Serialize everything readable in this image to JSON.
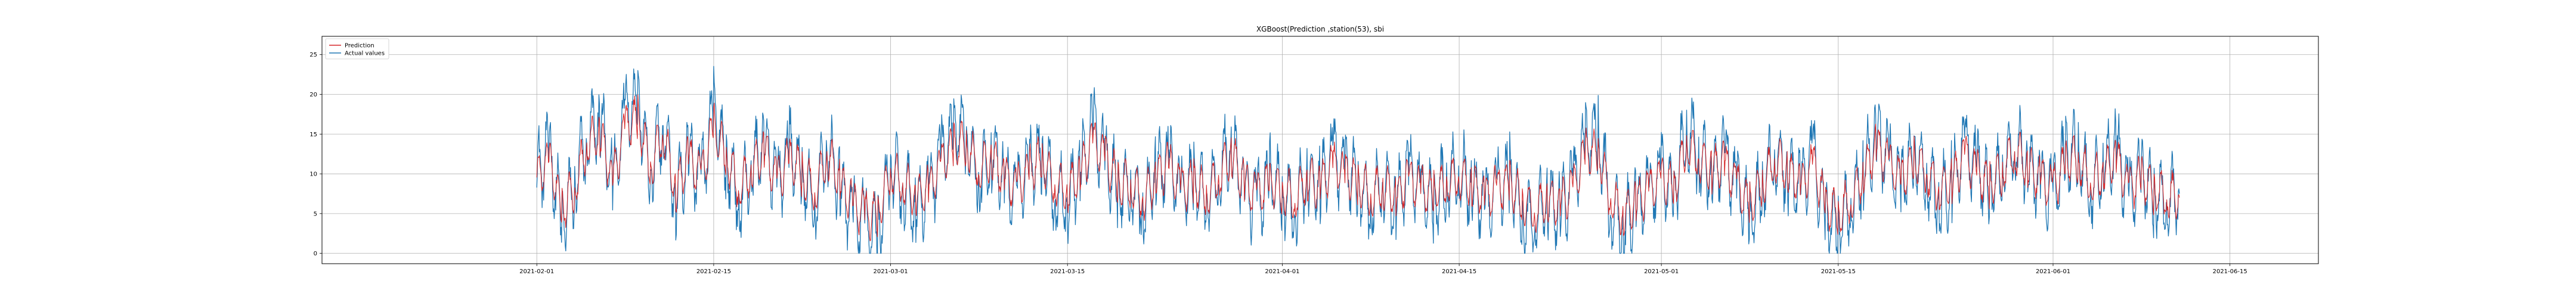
{
  "chart_data": {
    "type": "line",
    "title": "XGBoost(Prediction ,station(53), sbi",
    "xlabel": "",
    "ylabel": "",
    "x_range": [
      "2021-01-15",
      "2021-06-22"
    ],
    "x_ticks": [
      "2021-02-01",
      "2021-02-15",
      "2021-03-01",
      "2021-03-15",
      "2021-04-01",
      "2021-04-15",
      "2021-05-01",
      "2021-05-15",
      "2021-06-01",
      "2021-06-15"
    ],
    "ylim": [
      -1.3,
      27.3
    ],
    "y_ticks": [
      0,
      5,
      10,
      15,
      20,
      25
    ],
    "grid": true,
    "legend_position": "top-left",
    "series": [
      {
        "name": "Prediction",
        "color": "#d62728",
        "generated": false,
        "points": [
          [
            "2021-02-01",
            9.5
          ],
          [
            "2021-02-02",
            11.5
          ],
          [
            "2021-02-03",
            5.5
          ],
          [
            "2021-02-04",
            8.5
          ],
          [
            "2021-02-05",
            14.0
          ],
          [
            "2021-02-06",
            15.0
          ],
          [
            "2021-02-07",
            9.0
          ],
          [
            "2021-02-08",
            16.0
          ],
          [
            "2021-02-09",
            17.0
          ],
          [
            "2021-02-10",
            11.0
          ],
          [
            "2021-02-11",
            15.5
          ],
          [
            "2021-02-12",
            8.0
          ],
          [
            "2021-02-13",
            12.0
          ],
          [
            "2021-02-14",
            9.5
          ],
          [
            "2021-02-15",
            16.0
          ],
          [
            "2021-02-16",
            12.0
          ],
          [
            "2021-02-17",
            8.5
          ],
          [
            "2021-02-18",
            10.5
          ],
          [
            "2021-02-19",
            13.0
          ],
          [
            "2021-02-20",
            9.0
          ],
          [
            "2021-02-21",
            12.0
          ],
          [
            "2021-02-22",
            10.0
          ],
          [
            "2021-02-23",
            8.0
          ],
          [
            "2021-02-24",
            12.5
          ],
          [
            "2021-02-25",
            9.0
          ],
          [
            "2021-02-26",
            6.0
          ],
          [
            "2021-02-27",
            5.0
          ],
          [
            "2021-02-28",
            4.5
          ],
          [
            "2021-03-01",
            10.5
          ],
          [
            "2021-03-02",
            9.0
          ],
          [
            "2021-03-03",
            7.0
          ],
          [
            "2021-03-04",
            8.0
          ],
          [
            "2021-03-05",
            11.0
          ],
          [
            "2021-03-06",
            13.5
          ],
          [
            "2021-03-07",
            14.0
          ],
          [
            "2021-03-08",
            11.0
          ],
          [
            "2021-03-09",
            12.0
          ],
          [
            "2021-03-10",
            9.5
          ],
          [
            "2021-03-11",
            8.0
          ],
          [
            "2021-03-12",
            10.5
          ],
          [
            "2021-03-13",
            12.0
          ],
          [
            "2021-03-14",
            9.0
          ],
          [
            "2021-03-15",
            8.0
          ],
          [
            "2021-03-16",
            10.0
          ],
          [
            "2021-03-17",
            14.0
          ],
          [
            "2021-03-18",
            12.0
          ],
          [
            "2021-03-19",
            9.0
          ],
          [
            "2021-03-20",
            8.5
          ],
          [
            "2021-03-21",
            7.0
          ],
          [
            "2021-03-22",
            9.5
          ],
          [
            "2021-03-23",
            11.0
          ],
          [
            "2021-03-24",
            8.0
          ],
          [
            "2021-03-25",
            9.0
          ],
          [
            "2021-03-26",
            7.5
          ],
          [
            "2021-03-27",
            10.0
          ],
          [
            "2021-03-28",
            12.5
          ],
          [
            "2021-03-29",
            8.5
          ],
          [
            "2021-03-30",
            7.0
          ],
          [
            "2021-03-31",
            9.0
          ],
          [
            "2021-04-01",
            8.0
          ],
          [
            "2021-04-02",
            7.0
          ],
          [
            "2021-04-03",
            9.5
          ],
          [
            "2021-04-04",
            8.5
          ],
          [
            "2021-04-05",
            11.0
          ],
          [
            "2021-04-06",
            10.0
          ],
          [
            "2021-04-07",
            9.0
          ],
          [
            "2021-04-08",
            7.5
          ],
          [
            "2021-04-09",
            8.5
          ],
          [
            "2021-04-10",
            7.0
          ],
          [
            "2021-04-11",
            9.5
          ],
          [
            "2021-04-12",
            8.0
          ],
          [
            "2021-04-13",
            7.5
          ],
          [
            "2021-04-14",
            9.0
          ],
          [
            "2021-04-15",
            10.0
          ],
          [
            "2021-04-16",
            8.5
          ],
          [
            "2021-04-17",
            7.0
          ],
          [
            "2021-04-18",
            8.0
          ],
          [
            "2021-04-19",
            9.0
          ],
          [
            "2021-04-20",
            6.5
          ],
          [
            "2021-04-21",
            5.5
          ],
          [
            "2021-04-22",
            7.0
          ],
          [
            "2021-04-23",
            6.0
          ],
          [
            "2021-04-24",
            8.0
          ],
          [
            "2021-04-25",
            12.5
          ],
          [
            "2021-04-26",
            13.0
          ],
          [
            "2021-04-27",
            7.0
          ],
          [
            "2021-04-28",
            5.0
          ],
          [
            "2021-04-29",
            6.5
          ],
          [
            "2021-04-30",
            7.5
          ],
          [
            "2021-05-01",
            9.5
          ],
          [
            "2021-05-02",
            8.0
          ],
          [
            "2021-05-03",
            14.0
          ],
          [
            "2021-05-04",
            12.0
          ],
          [
            "2021-05-05",
            10.5
          ],
          [
            "2021-05-06",
            11.0
          ],
          [
            "2021-05-07",
            8.5
          ],
          [
            "2021-05-08",
            6.0
          ],
          [
            "2021-05-09",
            9.0
          ],
          [
            "2021-05-10",
            12.0
          ],
          [
            "2021-05-11",
            10.5
          ],
          [
            "2021-05-12",
            8.5
          ],
          [
            "2021-05-13",
            11.0
          ],
          [
            "2021-05-14",
            6.0
          ],
          [
            "2021-05-15",
            5.0
          ],
          [
            "2021-05-16",
            7.0
          ],
          [
            "2021-05-17",
            10.0
          ],
          [
            "2021-05-18",
            13.5
          ],
          [
            "2021-05-19",
            11.0
          ],
          [
            "2021-05-20",
            9.0
          ],
          [
            "2021-05-21",
            12.0
          ],
          [
            "2021-05-22",
            10.5
          ],
          [
            "2021-05-23",
            8.0
          ],
          [
            "2021-05-24",
            9.0
          ],
          [
            "2021-05-25",
            12.0
          ],
          [
            "2021-05-26",
            10.0
          ],
          [
            "2021-05-27",
            8.5
          ],
          [
            "2021-05-28",
            10.5
          ],
          [
            "2021-05-29",
            13.0
          ],
          [
            "2021-05-30",
            11.0
          ],
          [
            "2021-05-31",
            9.0
          ],
          [
            "2021-06-01",
            8.0
          ],
          [
            "2021-06-02",
            11.5
          ],
          [
            "2021-06-03",
            12.0
          ],
          [
            "2021-06-04",
            9.0
          ],
          [
            "2021-06-05",
            10.5
          ],
          [
            "2021-06-06",
            12.0
          ],
          [
            "2021-06-07",
            8.0
          ],
          [
            "2021-06-08",
            9.5
          ],
          [
            "2021-06-09",
            8.0
          ],
          [
            "2021-06-10",
            7.5
          ],
          [
            "2021-06-11",
            7.0
          ]
        ]
      },
      {
        "name": "Actual values",
        "color": "#1f77b4",
        "generated": false,
        "points": [
          [
            "2021-02-01",
            10.0
          ],
          [
            "2021-02-02",
            12.5
          ],
          [
            "2021-02-03",
            4.0
          ],
          [
            "2021-02-04",
            9.0
          ],
          [
            "2021-02-05",
            15.0
          ],
          [
            "2021-02-06",
            17.0
          ],
          [
            "2021-02-07",
            8.0
          ],
          [
            "2021-02-08",
            18.0
          ],
          [
            "2021-02-09",
            19.5
          ],
          [
            "2021-02-10",
            10.0
          ],
          [
            "2021-02-11",
            17.0
          ],
          [
            "2021-02-12",
            7.0
          ],
          [
            "2021-02-13",
            12.5
          ],
          [
            "2021-02-14",
            8.5
          ],
          [
            "2021-02-15",
            18.0
          ],
          [
            "2021-02-16",
            12.0
          ],
          [
            "2021-02-17",
            7.0
          ],
          [
            "2021-02-18",
            11.0
          ],
          [
            "2021-02-19",
            14.0
          ],
          [
            "2021-02-20",
            8.0
          ],
          [
            "2021-02-21",
            13.0
          ],
          [
            "2021-02-22",
            10.0
          ],
          [
            "2021-02-23",
            6.0
          ],
          [
            "2021-02-24",
            14.0
          ],
          [
            "2021-02-25",
            8.0
          ],
          [
            "2021-02-26",
            4.5
          ],
          [
            "2021-02-27",
            3.5
          ],
          [
            "2021-02-28",
            2.5
          ],
          [
            "2021-03-01",
            11.5
          ],
          [
            "2021-03-02",
            8.5
          ],
          [
            "2021-03-03",
            6.0
          ],
          [
            "2021-03-04",
            7.5
          ],
          [
            "2021-03-05",
            12.0
          ],
          [
            "2021-03-06",
            15.0
          ],
          [
            "2021-03-07",
            15.5
          ],
          [
            "2021-03-08",
            10.0
          ],
          [
            "2021-03-09",
            12.5
          ],
          [
            "2021-03-10",
            9.0
          ],
          [
            "2021-03-11",
            7.0
          ],
          [
            "2021-03-12",
            11.0
          ],
          [
            "2021-03-13",
            13.0
          ],
          [
            "2021-03-14",
            8.0
          ],
          [
            "2021-03-15",
            7.0
          ],
          [
            "2021-03-16",
            10.5
          ],
          [
            "2021-03-17",
            15.5
          ],
          [
            "2021-03-18",
            12.0
          ],
          [
            "2021-03-19",
            8.0
          ],
          [
            "2021-03-20",
            9.0
          ],
          [
            "2021-03-21",
            6.0
          ],
          [
            "2021-03-22",
            10.0
          ],
          [
            "2021-03-23",
            11.5
          ],
          [
            "2021-03-24",
            7.0
          ],
          [
            "2021-03-25",
            9.5
          ],
          [
            "2021-03-26",
            7.0
          ],
          [
            "2021-03-27",
            10.5
          ],
          [
            "2021-03-28",
            14.0
          ],
          [
            "2021-03-29",
            8.0
          ],
          [
            "2021-03-30",
            6.0
          ],
          [
            "2021-03-31",
            9.5
          ],
          [
            "2021-04-01",
            7.5
          ],
          [
            "2021-04-02",
            6.0
          ],
          [
            "2021-04-03",
            10.0
          ],
          [
            "2021-04-04",
            8.0
          ],
          [
            "2021-04-05",
            12.0
          ],
          [
            "2021-04-06",
            10.5
          ],
          [
            "2021-04-07",
            9.0
          ],
          [
            "2021-04-08",
            6.5
          ],
          [
            "2021-04-09",
            9.0
          ],
          [
            "2021-04-10",
            6.0
          ],
          [
            "2021-04-11",
            10.0
          ],
          [
            "2021-04-12",
            7.5
          ],
          [
            "2021-04-13",
            6.5
          ],
          [
            "2021-04-14",
            9.5
          ],
          [
            "2021-04-15",
            11.0
          ],
          [
            "2021-04-16",
            8.0
          ],
          [
            "2021-04-17",
            6.0
          ],
          [
            "2021-04-18",
            8.0
          ],
          [
            "2021-04-19",
            9.5
          ],
          [
            "2021-04-20",
            5.0
          ],
          [
            "2021-04-21",
            4.0
          ],
          [
            "2021-04-22",
            7.0
          ],
          [
            "2021-04-23",
            5.0
          ],
          [
            "2021-04-24",
            8.5
          ],
          [
            "2021-04-25",
            14.0
          ],
          [
            "2021-04-26",
            15.0
          ],
          [
            "2021-04-27",
            6.0
          ],
          [
            "2021-04-28",
            3.5
          ],
          [
            "2021-04-29",
            6.0
          ],
          [
            "2021-04-30",
            7.5
          ],
          [
            "2021-05-01",
            10.0
          ],
          [
            "2021-05-02",
            7.5
          ],
          [
            "2021-05-03",
            16.0
          ],
          [
            "2021-05-04",
            12.5
          ],
          [
            "2021-05-05",
            10.0
          ],
          [
            "2021-05-06",
            12.0
          ],
          [
            "2021-05-07",
            8.0
          ],
          [
            "2021-05-08",
            4.5
          ],
          [
            "2021-05-09",
            9.0
          ],
          [
            "2021-05-10",
            13.0
          ],
          [
            "2021-05-11",
            10.0
          ],
          [
            "2021-05-12",
            8.0
          ],
          [
            "2021-05-13",
            12.0
          ],
          [
            "2021-05-14",
            4.5
          ],
          [
            "2021-05-15",
            3.5
          ],
          [
            "2021-05-16",
            7.0
          ],
          [
            "2021-05-17",
            10.5
          ],
          [
            "2021-05-18",
            15.0
          ],
          [
            "2021-05-19",
            11.0
          ],
          [
            "2021-05-20",
            8.5
          ],
          [
            "2021-05-21",
            13.0
          ],
          [
            "2021-05-22",
            10.0
          ],
          [
            "2021-05-23",
            7.0
          ],
          [
            "2021-05-24",
            9.0
          ],
          [
            "2021-05-25",
            13.5
          ],
          [
            "2021-05-26",
            10.0
          ],
          [
            "2021-05-27",
            8.0
          ],
          [
            "2021-05-28",
            11.0
          ],
          [
            "2021-05-29",
            14.5
          ],
          [
            "2021-05-30",
            11.0
          ],
          [
            "2021-05-31",
            8.5
          ],
          [
            "2021-06-01",
            7.0
          ],
          [
            "2021-06-02",
            12.5
          ],
          [
            "2021-06-03",
            13.0
          ],
          [
            "2021-06-04",
            8.5
          ],
          [
            "2021-06-05",
            11.0
          ],
          [
            "2021-06-06",
            13.0
          ],
          [
            "2021-06-07",
            7.0
          ],
          [
            "2021-06-08",
            10.0
          ],
          [
            "2021-06-09",
            7.5
          ],
          [
            "2021-06-10",
            7.0
          ],
          [
            "2021-06-11",
            7.5
          ]
        ]
      }
    ]
  }
}
